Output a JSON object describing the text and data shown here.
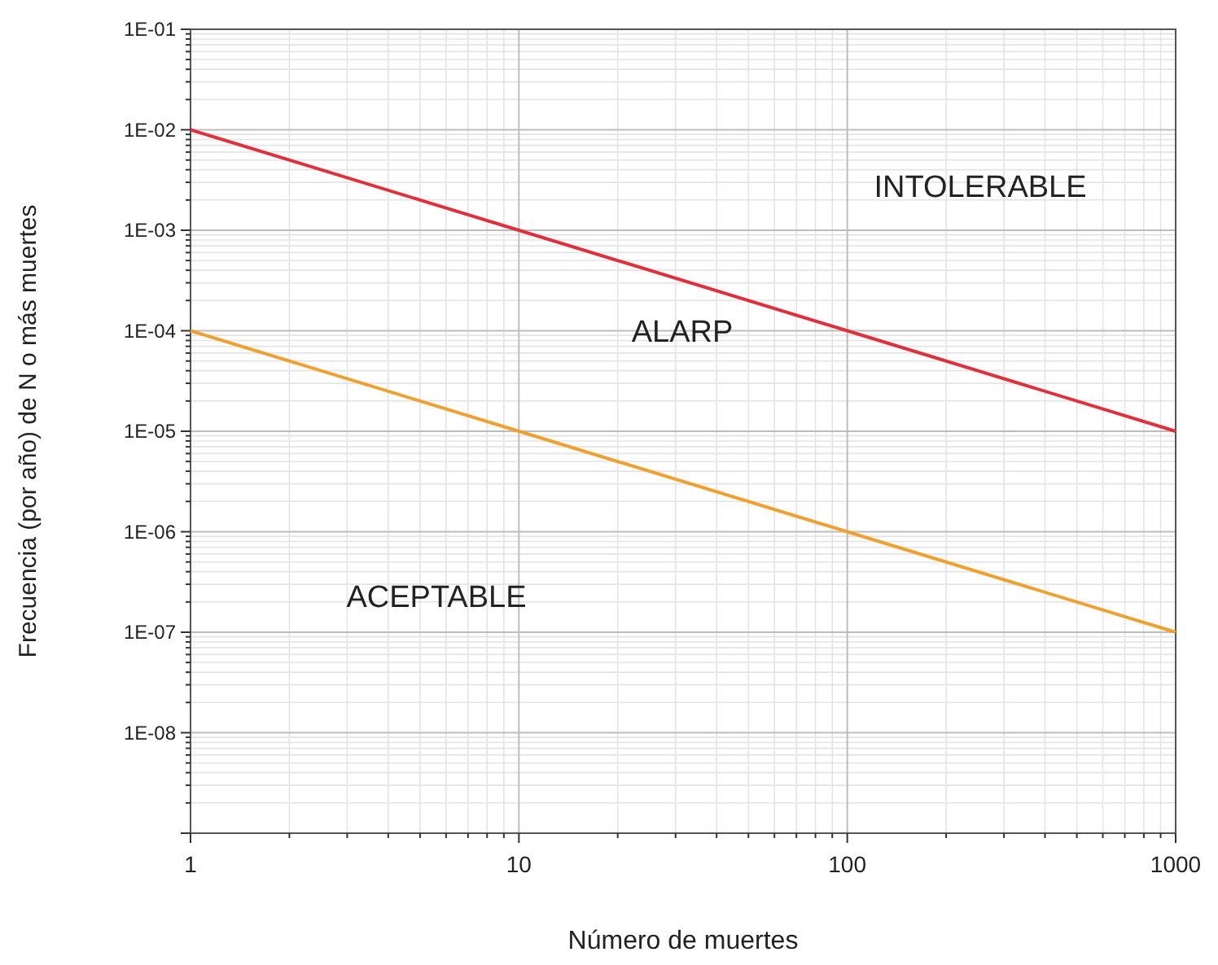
{
  "chart_data": {
    "type": "line",
    "xlabel": "Número de muertes",
    "ylabel": "Frecuencia (por año) de N o más muertes",
    "log": "xy",
    "grid": true,
    "marker": "none",
    "line_style": "solid",
    "x": [
      1,
      10,
      100,
      1000
    ],
    "series": [
      {
        "color": "#e0303c",
        "values": [
          0.01,
          0.001,
          0.0001,
          1e-05
        ]
      },
      {
        "color": "#f0a030",
        "values": [
          0.0001,
          1e-05,
          1e-06,
          1e-07
        ]
      }
    ],
    "xlim": [
      1,
      1000
    ],
    "xticks": [
      1,
      10,
      100,
      1000
    ],
    "ylim": [
      1e-09,
      0.1
    ],
    "yticks": [
      {
        "value": 0.1,
        "label": "1E-01"
      },
      {
        "value": 0.01,
        "label": "1E-02"
      },
      {
        "value": 0.001,
        "label": "1E-03"
      },
      {
        "value": 0.0001,
        "label": "1E-04"
      },
      {
        "value": 1e-05,
        "label": "1E-05"
      },
      {
        "value": 1e-06,
        "label": "1E-06"
      },
      {
        "value": 1e-07,
        "label": "1E-07"
      },
      {
        "value": 1e-08,
        "label": "1E-08"
      },
      {
        "value": 1e-09,
        "label": null
      }
    ],
    "annotations": [
      "INTOLERABLE",
      "ALARP",
      "ACEPTABLE"
    ]
  }
}
